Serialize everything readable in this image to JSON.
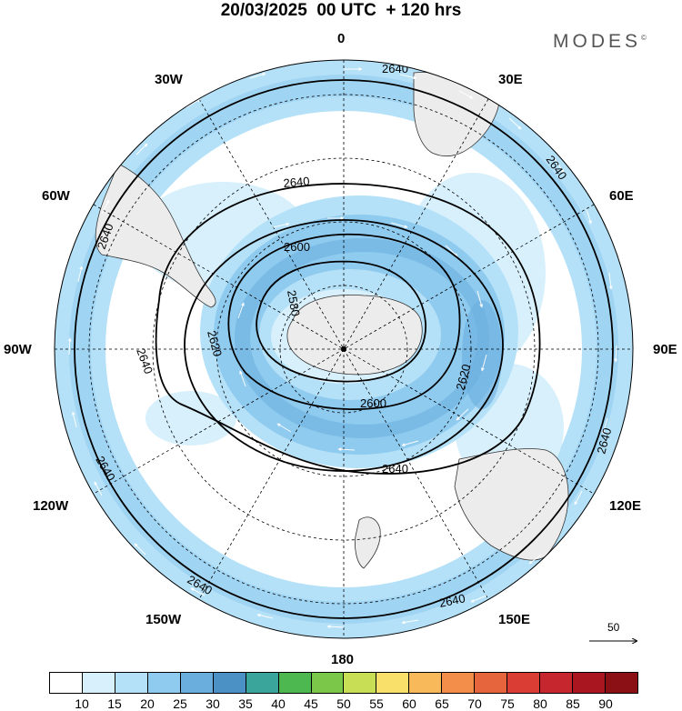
{
  "header": {
    "title": "20/03/2025  00 UTC  + 120 hrs",
    "brand": "MODES"
  },
  "map": {
    "projection": "south-polar-stereographic",
    "longitude_labels": {
      "top": "0",
      "bottom": "180",
      "left": "90W",
      "right": "90E",
      "upper_left_30": "30W",
      "upper_left_60": "60W",
      "upper_right_30": "30E",
      "upper_right_60": "60E",
      "lower_left_120": "120W",
      "lower_left_150": "150W",
      "lower_right_120": "120E",
      "lower_right_150": "150E"
    },
    "contour_labels": {
      "c1": "2640",
      "c2": "2640",
      "c3": "2640",
      "c4": "2640",
      "c5": "2640",
      "c6": "2640",
      "c7": "2640",
      "c8": "2640",
      "c9": "2640",
      "c10": "2640",
      "c11": "2600",
      "c12": "2600",
      "c13": "2580",
      "c14": "2620",
      "c15": "2620"
    },
    "reference_vector": "50",
    "colors": {
      "land": "#ececec",
      "ocean": "#ffffff",
      "coast": "#333333",
      "contour": "#000000"
    }
  },
  "colorbar": {
    "labels": [
      "10",
      "15",
      "20",
      "25",
      "30",
      "35",
      "40",
      "45",
      "50",
      "55",
      "60",
      "65",
      "70",
      "75",
      "80",
      "85",
      "90"
    ],
    "colors": [
      "#ffffff",
      "#d7f0fc",
      "#b4e1f8",
      "#8fcaef",
      "#6aaede",
      "#4c91c6",
      "#3aa59a",
      "#4cb84f",
      "#7ac74a",
      "#c8de54",
      "#f9e06b",
      "#f7b95a",
      "#f28d4a",
      "#e7653c",
      "#d93d34",
      "#c6262e",
      "#a9161f",
      "#8b1016"
    ]
  }
}
